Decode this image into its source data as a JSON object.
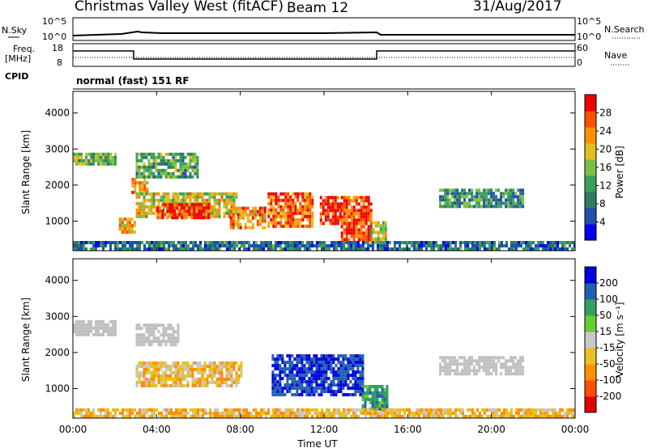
{
  "header": {
    "title": "Christmas Valley West (fitACF)",
    "beam": "Beam 12",
    "date": "31/Aug/2017"
  },
  "top_panels": {
    "nsky_label": "N.Sky",
    "nsky_ticks": [
      "10^5",
      "10^0"
    ],
    "nsearch_label": "N.Search",
    "freq_label_1": "Freq.",
    "freq_label_2": "[MHz]",
    "freq_ticks": [
      "18",
      "8"
    ],
    "nave_label": "Nave",
    "nave_ticks": [
      "60",
      "0"
    ],
    "cpid_label": "CPID",
    "cpid_value": "normal (fast) 151 RF"
  },
  "axes": {
    "ylabel": "Slant Range [km]",
    "xlabel": "Time UT",
    "x_ticks": [
      "00:00",
      "04:00",
      "08:00",
      "12:00",
      "16:00",
      "20:00",
      "00:00"
    ],
    "y_ticks": [
      "1000",
      "2000",
      "3000",
      "4000"
    ]
  },
  "colors": {
    "power_scale": [
      "#0000ee",
      "#1f4fb0",
      "#2f7a62",
      "#3a9e5c",
      "#7bc043",
      "#e0c020",
      "#ff9000",
      "#ff5000",
      "#ee0000"
    ],
    "velocity_scale": [
      "#e00000",
      "#ff5000",
      "#ff9000",
      "#e8c020",
      "#c8c8c8",
      "#66cc33",
      "#33a060",
      "#2060b0",
      "#0000dd"
    ],
    "ground_scatter": "#c0c0c0"
  },
  "colorbars": {
    "power_label": "Power [dB]",
    "power_ticks": [
      "4",
      "8",
      "12",
      "16",
      "20",
      "24",
      "28"
    ],
    "velocity_label": "Velocity [m s⁻¹]",
    "velocity_ticks": [
      "-200",
      "-100",
      "-50",
      "-15",
      "15",
      "50",
      "100",
      "200"
    ]
  },
  "chart_data": [
    {
      "type": "heatmap",
      "panel": "power",
      "xlabel": "Time UT",
      "ylabel": "Slant Range [km]",
      "colorbar_label": "Power [dB]",
      "xlim": [
        0,
        24
      ],
      "ylim": [
        180,
        4600
      ],
      "clim": [
        0,
        30
      ],
      "x_ticks": [
        "00:00",
        "04:00",
        "08:00",
        "12:00",
        "16:00",
        "20:00",
        "00:00"
      ],
      "y_ticks": [
        1000,
        2000,
        3000,
        4000
      ],
      "regions": [
        {
          "t": [
            0.0,
            2.0
          ],
          "range": [
            2600,
            2900
          ],
          "power": 14
        },
        {
          "t": [
            2.8,
            3.6
          ],
          "range": [
            1800,
            2200
          ],
          "power": 22
        },
        {
          "t": [
            3.0,
            6.0
          ],
          "range": [
            2200,
            2900
          ],
          "power": 12
        },
        {
          "t": [
            2.2,
            3.0
          ],
          "range": [
            700,
            1100
          ],
          "power": 20
        },
        {
          "t": [
            3.0,
            7.8
          ],
          "range": [
            1100,
            1800
          ],
          "power": 18
        },
        {
          "t": [
            4.0,
            6.5
          ],
          "range": [
            1100,
            1500
          ],
          "power": 28
        },
        {
          "t": [
            7.5,
            9.2
          ],
          "range": [
            800,
            1400
          ],
          "power": 22
        },
        {
          "t": [
            9.3,
            11.5
          ],
          "range": [
            900,
            1800
          ],
          "power": 24
        },
        {
          "t": [
            11.8,
            12.8
          ],
          "range": [
            900,
            1700
          ],
          "power": 28
        },
        {
          "t": [
            12.8,
            14.2
          ],
          "range": [
            500,
            1700
          ],
          "power": 26
        },
        {
          "t": [
            14.2,
            15.0
          ],
          "range": [
            400,
            1000
          ],
          "power": 16
        },
        {
          "t": [
            17.5,
            21.5
          ],
          "range": [
            1450,
            1900
          ],
          "power": 10
        },
        {
          "t": [
            0.0,
            24.0
          ],
          "range": [
            180,
            450
          ],
          "power": 8
        }
      ]
    },
    {
      "type": "heatmap",
      "panel": "velocity",
      "xlabel": "Time UT",
      "ylabel": "Slant Range [km]",
      "colorbar_label": "Velocity [m s⁻¹]",
      "xlim": [
        0,
        24
      ],
      "ylim": [
        180,
        4600
      ],
      "clim": [
        -250,
        250
      ],
      "x_ticks": [
        "00:00",
        "04:00",
        "08:00",
        "12:00",
        "16:00",
        "20:00",
        "00:00"
      ],
      "y_ticks": [
        1000,
        2000,
        3000,
        4000
      ],
      "regions": [
        {
          "t": [
            0.0,
            2.0
          ],
          "range": [
            2500,
            2900
          ],
          "velocity": 0,
          "ground_scatter": true
        },
        {
          "t": [
            3.0,
            5.0
          ],
          "range": [
            2200,
            2800
          ],
          "velocity": 0,
          "ground_scatter": true
        },
        {
          "t": [
            3.0,
            8.0
          ],
          "range": [
            1050,
            1750
          ],
          "velocity": -30
        },
        {
          "t": [
            9.5,
            13.8
          ],
          "range": [
            850,
            1950
          ],
          "velocity": 200
        },
        {
          "t": [
            13.8,
            15.0
          ],
          "range": [
            450,
            1100
          ],
          "velocity": 80
        },
        {
          "t": [
            17.5,
            21.5
          ],
          "range": [
            1400,
            1900
          ],
          "velocity": 0,
          "ground_scatter": true
        },
        {
          "t": [
            0.0,
            24.0
          ],
          "range": [
            180,
            450
          ],
          "velocity": -40
        }
      ]
    }
  ]
}
